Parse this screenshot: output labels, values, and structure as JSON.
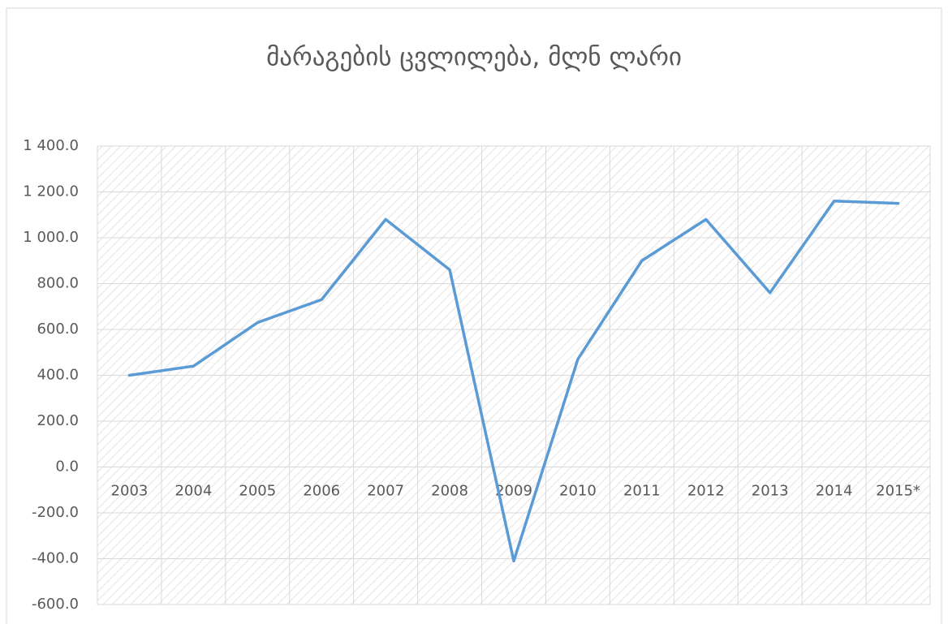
{
  "chart_data": {
    "type": "line",
    "title": "მარაგების ცვლილება, მლნ ლარი",
    "categories": [
      "2003",
      "2004",
      "2005",
      "2006",
      "2007",
      "2008",
      "2009",
      "2010",
      "2011",
      "2012",
      "2013",
      "2014",
      "2015*"
    ],
    "series": [
      {
        "name": "მარაგების ცვლილება",
        "color": "#5b9bd5",
        "values": [
          400,
          440,
          630,
          730,
          1080,
          860,
          -410,
          470,
          900,
          1080,
          760,
          1160,
          1150
        ]
      }
    ],
    "ylim": [
      -600,
      1400
    ],
    "yticks": [
      {
        "value": -600,
        "label": "-600.0"
      },
      {
        "value": -400,
        "label": "-400.0"
      },
      {
        "value": -200,
        "label": "-200.0"
      },
      {
        "value": 0,
        "label": "0.0"
      },
      {
        "value": 200,
        "label": "200.0"
      },
      {
        "value": 400,
        "label": "400.0"
      },
      {
        "value": 600,
        "label": "600.0"
      },
      {
        "value": 800,
        "label": "800.0"
      },
      {
        "value": 1000,
        "label": "1 000.0"
      },
      {
        "value": 1200,
        "label": "1 200.0"
      },
      {
        "value": 1400,
        "label": "1 400.0"
      }
    ],
    "grid": true
  }
}
